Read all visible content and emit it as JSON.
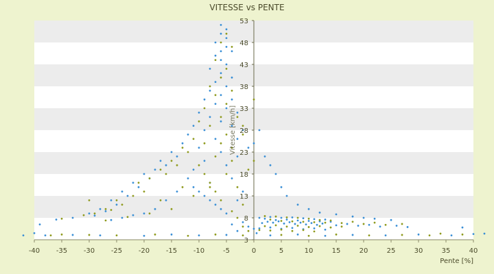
{
  "chart_data": {
    "type": "scatter",
    "title": "VITESSE vs PENTE",
    "xlabel": "Pente [%]",
    "ylabel": "Vitesse [km/h]",
    "xlim": [
      -40,
      40
    ],
    "ylim": [
      3,
      53
    ],
    "x_ticks": [
      -40,
      -35,
      -30,
      -25,
      -20,
      -15,
      -10,
      -5,
      0,
      5,
      10,
      15,
      20,
      25,
      30,
      35,
      40
    ],
    "y_ticks": [
      3,
      8,
      13,
      18,
      23,
      28,
      33,
      38,
      43,
      48,
      53
    ],
    "grid": "alternating horizontal bands",
    "legend": "none",
    "colors": {
      "series_a": "#3a8fd6",
      "series_b": "#8f9a1e",
      "background": "#eef3cf",
      "band": "#ececec"
    },
    "series": [
      {
        "points": [
          [
            -6,
            52
          ],
          [
            -5,
            51
          ],
          [
            -6,
            50
          ],
          [
            -5,
            49
          ],
          [
            -7,
            48
          ],
          [
            -5,
            47
          ],
          [
            -6,
            46
          ],
          [
            -4,
            46
          ],
          [
            -7,
            45
          ],
          [
            -6,
            44
          ],
          [
            -5,
            43
          ],
          [
            -8,
            42
          ],
          [
            -6,
            41
          ],
          [
            -4,
            40
          ],
          [
            -7,
            39
          ],
          [
            -5,
            38
          ],
          [
            -8,
            37
          ],
          [
            -6,
            36
          ],
          [
            -9,
            35
          ],
          [
            -4,
            35
          ],
          [
            -7,
            34
          ],
          [
            -5,
            33
          ],
          [
            -10,
            32
          ],
          [
            -3,
            32
          ],
          [
            -8,
            31
          ],
          [
            -6,
            30
          ],
          [
            -11,
            29
          ],
          [
            -4,
            29
          ],
          [
            -9,
            28
          ],
          [
            -2,
            28
          ],
          [
            -12,
            27
          ],
          [
            -7,
            26
          ],
          [
            -3,
            26
          ],
          [
            -13,
            25
          ],
          [
            -10,
            24
          ],
          [
            -1,
            24
          ],
          [
            -15,
            23
          ],
          [
            -6,
            23
          ],
          [
            -14,
            22
          ],
          [
            2,
            22
          ],
          [
            -17,
            21
          ],
          [
            -9,
            21
          ],
          [
            -16,
            20
          ],
          [
            3,
            20
          ],
          [
            -18,
            19
          ],
          [
            -11,
            19
          ],
          [
            -20,
            18
          ],
          [
            4,
            18
          ],
          [
            -19,
            17
          ],
          [
            -12,
            17
          ],
          [
            -22,
            16
          ],
          [
            -8,
            16
          ],
          [
            -21,
            15
          ],
          [
            5,
            15
          ],
          [
            -24,
            14
          ],
          [
            -14,
            14
          ],
          [
            -23,
            13
          ],
          [
            6,
            13
          ],
          [
            -26,
            12
          ],
          [
            -16,
            12
          ],
          [
            -25,
            11
          ],
          [
            8,
            11
          ],
          [
            -28,
            10
          ],
          [
            -18,
            10
          ],
          [
            -27,
            9.5
          ],
          [
            10,
            10
          ],
          [
            -30,
            9
          ],
          [
            -20,
            9
          ],
          [
            12,
            9.2
          ],
          [
            15,
            8.8
          ],
          [
            -29,
            8.5
          ],
          [
            -22,
            8.6
          ],
          [
            18,
            8.3
          ],
          [
            20,
            8
          ],
          [
            -33,
            8
          ],
          [
            -24,
            8
          ],
          [
            22,
            7.8
          ],
          [
            25,
            7.5
          ],
          [
            -36,
            7.6
          ],
          [
            -26,
            7.5
          ],
          [
            1,
            8
          ],
          [
            2,
            7.8
          ],
          [
            3,
            8.2
          ],
          [
            4,
            7.5
          ],
          [
            5,
            8
          ],
          [
            6,
            7.6
          ],
          [
            7,
            8.1
          ],
          [
            8,
            7.4
          ],
          [
            9,
            7.9
          ],
          [
            10,
            7.3
          ],
          [
            11,
            7.7
          ],
          [
            12,
            7.2
          ],
          [
            13,
            7.6
          ],
          [
            14,
            7.1
          ],
          [
            1.5,
            6.8
          ],
          [
            2.5,
            7.1
          ],
          [
            3.5,
            6.9
          ],
          [
            4.5,
            7.2
          ],
          [
            5.5,
            6.7
          ],
          [
            6.5,
            7
          ],
          [
            7.5,
            6.6
          ],
          [
            8.5,
            6.9
          ],
          [
            9.5,
            6.5
          ],
          [
            10.5,
            6.8
          ],
          [
            11.5,
            6.4
          ],
          [
            12.5,
            6.7
          ],
          [
            15,
            6.3
          ],
          [
            17,
            6.6
          ],
          [
            19,
            6.2
          ],
          [
            21,
            6.4
          ],
          [
            23,
            6
          ],
          [
            26,
            6.2
          ],
          [
            28,
            5.9
          ],
          [
            1,
            5.6
          ],
          [
            3,
            5.8
          ],
          [
            5,
            5.5
          ],
          [
            7,
            5.7
          ],
          [
            9,
            5.4
          ],
          [
            11,
            5.6
          ],
          [
            13,
            5.3
          ],
          [
            -1,
            6
          ],
          [
            -2,
            7
          ],
          [
            -3,
            5
          ],
          [
            -4,
            6.5
          ],
          [
            0,
            5.5
          ],
          [
            0.5,
            4.5
          ],
          [
            -5,
            9
          ],
          [
            -6,
            10
          ],
          [
            -7,
            11
          ],
          [
            -8,
            12
          ],
          [
            -9,
            13
          ],
          [
            -10,
            14
          ],
          [
            -11,
            15
          ],
          [
            -3,
            12
          ],
          [
            -2,
            14
          ],
          [
            -4,
            17
          ],
          [
            -5,
            20
          ],
          [
            -3,
            22
          ],
          [
            0,
            25
          ],
          [
            1,
            28
          ],
          [
            -38,
            4
          ],
          [
            -33,
            4.1
          ],
          [
            -28,
            4
          ],
          [
            -20,
            3.9
          ],
          [
            -15,
            4.2
          ],
          [
            -10,
            4
          ],
          [
            -5,
            4.1
          ],
          [
            3,
            4
          ],
          [
            8,
            4.2
          ],
          [
            13,
            3.9
          ],
          [
            18,
            4.1
          ],
          [
            24,
            4
          ],
          [
            30,
            4.2
          ],
          [
            36,
            4
          ],
          [
            -40,
            4.5
          ],
          [
            40,
            4.3
          ],
          [
            -39,
            6.5
          ],
          [
            38,
            5.8
          ],
          [
            -42,
            4
          ],
          [
            42,
            4.4
          ]
        ]
      },
      {
        "points": [
          [
            -5,
            50
          ],
          [
            -6,
            48
          ],
          [
            -4,
            47
          ],
          [
            -7,
            44
          ],
          [
            -5,
            42
          ],
          [
            -6,
            40
          ],
          [
            -8,
            38
          ],
          [
            -4,
            37
          ],
          [
            -7,
            36
          ],
          [
            -5,
            34
          ],
          [
            -9,
            33
          ],
          [
            -3,
            31
          ],
          [
            -6,
            31
          ],
          [
            -10,
            30
          ],
          [
            -8,
            29
          ],
          [
            -5,
            27
          ],
          [
            -11,
            26
          ],
          [
            -2,
            27
          ],
          [
            -9,
            25
          ],
          [
            -13,
            24
          ],
          [
            -4,
            24
          ],
          [
            -12,
            23
          ],
          [
            -7,
            22
          ],
          [
            -15,
            21
          ],
          [
            0,
            21
          ],
          [
            -14,
            20
          ],
          [
            -10,
            20
          ],
          [
            -17,
            19
          ],
          [
            -5,
            18
          ],
          [
            -16,
            18
          ],
          [
            -19,
            17
          ],
          [
            -8,
            15
          ],
          [
            -21,
            16
          ],
          [
            -13,
            15
          ],
          [
            -20,
            14
          ],
          [
            -22,
            13
          ],
          [
            -11,
            13
          ],
          [
            -25,
            12
          ],
          [
            -17,
            12
          ],
          [
            -24,
            11
          ],
          [
            -27,
            10
          ],
          [
            -15,
            10
          ],
          [
            -26,
            9.8
          ],
          [
            -29,
            9
          ],
          [
            -19,
            9
          ],
          [
            -31,
            8.6
          ],
          [
            -23,
            8.2
          ],
          [
            -35,
            7.8
          ],
          [
            -27,
            7.4
          ],
          [
            -30,
            12
          ],
          [
            2,
            8.4
          ],
          [
            3,
            7.6
          ],
          [
            4,
            8.3
          ],
          [
            5,
            7.3
          ],
          [
            6,
            8.1
          ],
          [
            7,
            7.2
          ],
          [
            8,
            8
          ],
          [
            9,
            7.1
          ],
          [
            10,
            7.8
          ],
          [
            11,
            7
          ],
          [
            12,
            7.5
          ],
          [
            13,
            6.9
          ],
          [
            14,
            7.4
          ],
          [
            16,
            6.8
          ],
          [
            18,
            7.1
          ],
          [
            20,
            6.6
          ],
          [
            22,
            6.9
          ],
          [
            24,
            6.4
          ],
          [
            27,
            6.6
          ],
          [
            2,
            6.1
          ],
          [
            4,
            6.3
          ],
          [
            6,
            6
          ],
          [
            8,
            6.2
          ],
          [
            10,
            5.9
          ],
          [
            12,
            6.1
          ],
          [
            14,
            5.8
          ],
          [
            16,
            6
          ],
          [
            1,
            5.2
          ],
          [
            3,
            5.1
          ],
          [
            5,
            5.3
          ],
          [
            7,
            5
          ],
          [
            9,
            5.2
          ],
          [
            11,
            4.9
          ],
          [
            -1,
            5
          ],
          [
            -2,
            6
          ],
          [
            -3,
            8
          ],
          [
            -4,
            9.5
          ],
          [
            -6,
            12
          ],
          [
            -7,
            14
          ],
          [
            -8,
            16
          ],
          [
            -9,
            18
          ],
          [
            -2,
            11
          ],
          [
            -3,
            15
          ],
          [
            -1,
            19
          ],
          [
            -4,
            21
          ],
          [
            -6,
            25
          ],
          [
            -2,
            29
          ],
          [
            0,
            35
          ],
          [
            -35,
            4.2
          ],
          [
            -30,
            4.1
          ],
          [
            -25,
            4
          ],
          [
            -18,
            4.2
          ],
          [
            -12,
            3.9
          ],
          [
            -7,
            4.2
          ],
          [
            -2,
            4
          ],
          [
            5,
            4.1
          ],
          [
            10,
            3.9
          ],
          [
            15,
            4.2
          ],
          [
            21,
            4
          ],
          [
            27,
            4.1
          ],
          [
            32,
            4
          ],
          [
            38,
            4.2
          ],
          [
            -37,
            4
          ],
          [
            34,
            4.4
          ]
        ]
      }
    ]
  }
}
